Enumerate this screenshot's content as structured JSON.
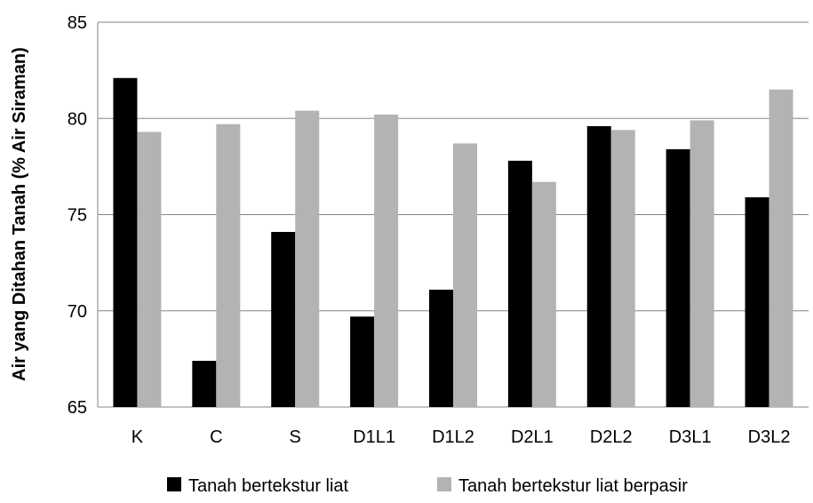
{
  "chart_data": {
    "type": "bar",
    "title": "",
    "xlabel": "",
    "ylabel": "Air yang Ditahan Tanah (% Air Siraman)",
    "ylim": [
      65,
      85
    ],
    "yticks": [
      65,
      70,
      75,
      80,
      85
    ],
    "grid": true,
    "legend_position": "bottom",
    "categories": [
      "K",
      "C",
      "S",
      "D1L1",
      "D1L2",
      "D2L1",
      "D2L2",
      "D3L1",
      "D3L2"
    ],
    "series": [
      {
        "name": "Tanah bertekstur liat",
        "color": "#000000",
        "values": [
          82.1,
          67.4,
          74.1,
          69.7,
          71.1,
          77.8,
          79.6,
          78.4,
          75.9
        ]
      },
      {
        "name": "Tanah bertekstur liat berpasir",
        "color": "#b3b3b3",
        "values": [
          79.3,
          79.7,
          80.4,
          80.2,
          78.7,
          76.7,
          79.4,
          79.9,
          81.5
        ]
      }
    ]
  }
}
